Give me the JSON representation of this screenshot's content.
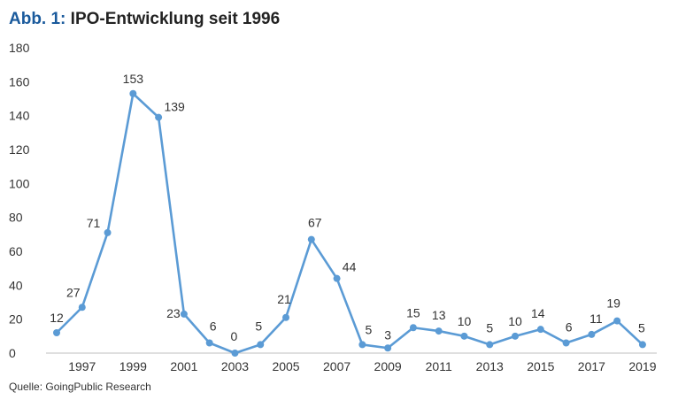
{
  "header": {
    "title_prefix": "Abb. 1:",
    "title_text": "IPO-Entwicklung seit 1996"
  },
  "footer": {
    "source": "Quelle: GoingPublic Research"
  },
  "colors": {
    "line": "#5b9bd5",
    "title_accent": "#1a5a9c"
  },
  "chart_data": {
    "type": "line",
    "title": "IPO-Entwicklung seit 1996",
    "xlabel": "",
    "ylabel": "",
    "x": [
      1996,
      1997,
      1998,
      1999,
      2000,
      2001,
      2002,
      2003,
      2004,
      2005,
      2006,
      2007,
      2008,
      2009,
      2010,
      2011,
      2012,
      2013,
      2014,
      2015,
      2016,
      2017,
      2018,
      2019
    ],
    "values": [
      12,
      27,
      71,
      153,
      139,
      23,
      6,
      0,
      5,
      21,
      67,
      44,
      5,
      3,
      15,
      13,
      10,
      5,
      10,
      14,
      6,
      11,
      19,
      5
    ],
    "x_tick_labels": [
      "1997",
      "1999",
      "2001",
      "2003",
      "2005",
      "2007",
      "2009",
      "2011",
      "2013",
      "2015",
      "2017",
      "2019"
    ],
    "y_ticks": [
      0,
      20,
      40,
      60,
      80,
      100,
      120,
      140,
      160,
      180
    ],
    "ylim": [
      0,
      180
    ],
    "grid": false,
    "legend": "none",
    "marker": "circle"
  }
}
